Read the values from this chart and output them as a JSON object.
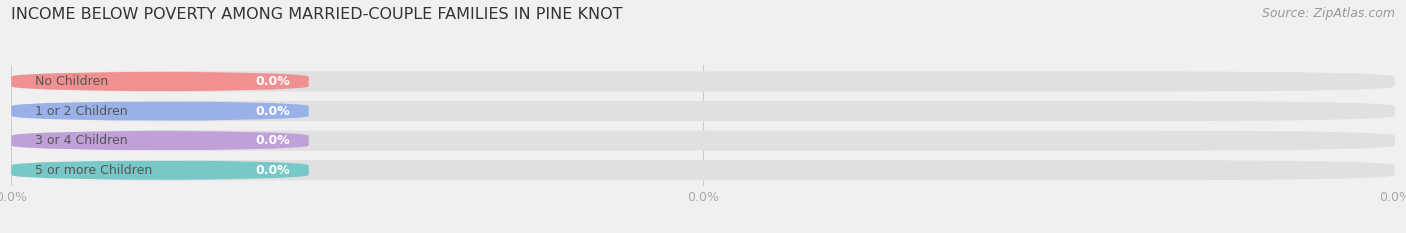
{
  "title": "INCOME BELOW POVERTY AMONG MARRIED-COUPLE FAMILIES IN PINE KNOT",
  "source": "Source: ZipAtlas.com",
  "categories": [
    "No Children",
    "1 or 2 Children",
    "3 or 4 Children",
    "5 or more Children"
  ],
  "values": [
    0.0,
    0.0,
    0.0,
    0.0
  ],
  "bar_colors": [
    "#f09090",
    "#9ab0e8",
    "#c0a0d8",
    "#78c8c8"
  ],
  "background_color": "#f0f0f0",
  "bar_bg_color": "#e0e0e0",
  "bar_bg_color2": "#e8e8e8",
  "title_fontsize": 11.5,
  "source_fontsize": 9,
  "label_fontsize": 9,
  "value_fontsize": 9,
  "figsize": [
    14.06,
    2.33
  ],
  "dpi": 100,
  "tick_fontsize": 9,
  "tick_color": "#aaaaaa"
}
